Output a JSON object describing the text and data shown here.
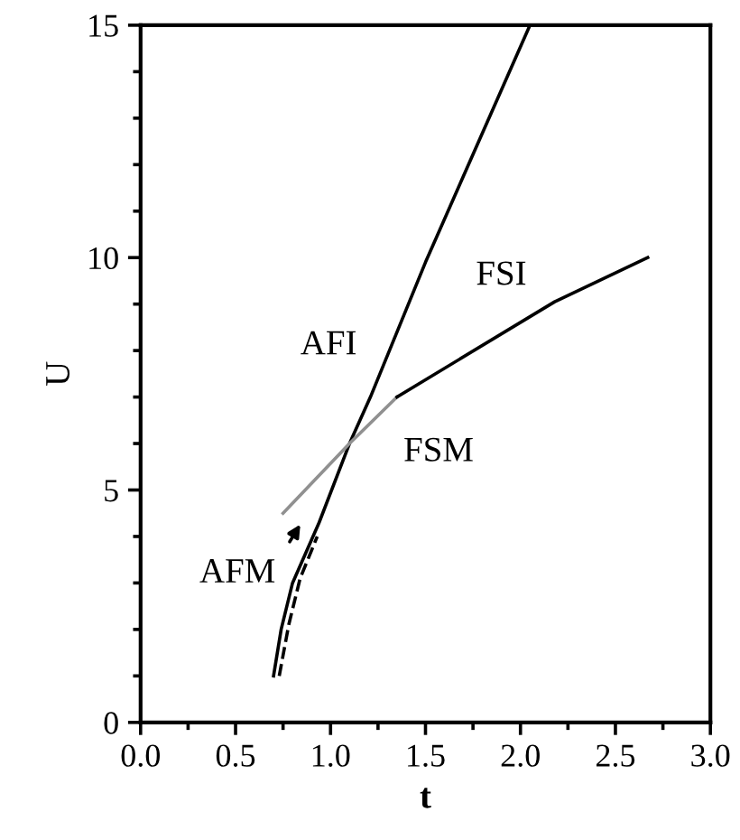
{
  "chart_data": {
    "type": "line",
    "xlabel": "t",
    "ylabel": "U",
    "xlim": [
      0.0,
      3.0
    ],
    "xticks": [
      {
        "value": 0.0,
        "label": "0.0"
      },
      {
        "value": 0.5,
        "label": "0.5"
      },
      {
        "value": 1.0,
        "label": "1.0"
      },
      {
        "value": 1.5,
        "label": "1.5"
      },
      {
        "value": 2.0,
        "label": "2.0"
      },
      {
        "value": 2.5,
        "label": "2.5"
      },
      {
        "value": 3.0,
        "label": "3.0"
      }
    ],
    "ylim": [
      0,
      15
    ],
    "yticks": [
      0,
      5,
      10,
      15
    ],
    "grid": false,
    "legend": false,
    "marker": "none",
    "series": [
      {
        "color": "#000000",
        "line_style": "solid",
        "x": [
          0.7,
          0.74,
          0.8,
          0.94,
          1.1,
          1.21,
          1.5,
          2.05
        ],
        "values": [
          1.0,
          2.0,
          3.0,
          4.3,
          6.0,
          7.0,
          9.9,
          15.0
        ]
      },
      {
        "color": "#000000",
        "line_style": "dashed",
        "x": [
          0.73,
          0.78,
          0.84,
          0.93
        ],
        "values": [
          1.0,
          2.1,
          3.1,
          4.0
        ]
      },
      {
        "color": "#909090",
        "line_style": "solid",
        "x": [
          0.75,
          1.1,
          1.35
        ],
        "values": [
          4.5,
          6.0,
          7.0
        ]
      },
      {
        "color": "#000000",
        "line_style": "solid",
        "x": [
          1.35,
          2.18,
          2.67
        ],
        "values": [
          7.0,
          9.05,
          10.0
        ]
      }
    ],
    "annotations": [
      "AFI",
      "FSI",
      "FSM",
      "AFM"
    ]
  }
}
